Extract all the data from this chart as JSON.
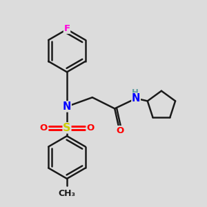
{
  "bg_color": "#dcdcdc",
  "bond_color": "#1a1a1a",
  "line_width": 1.8,
  "atom_colors": {
    "F": "#ff00dd",
    "N": "#0000ff",
    "O": "#ff0000",
    "S": "#cccc00",
    "H": "#5f9ea0",
    "C": "#1a1a1a"
  },
  "font_size": 9.5,
  "atom_bg": "#dcdcdc"
}
